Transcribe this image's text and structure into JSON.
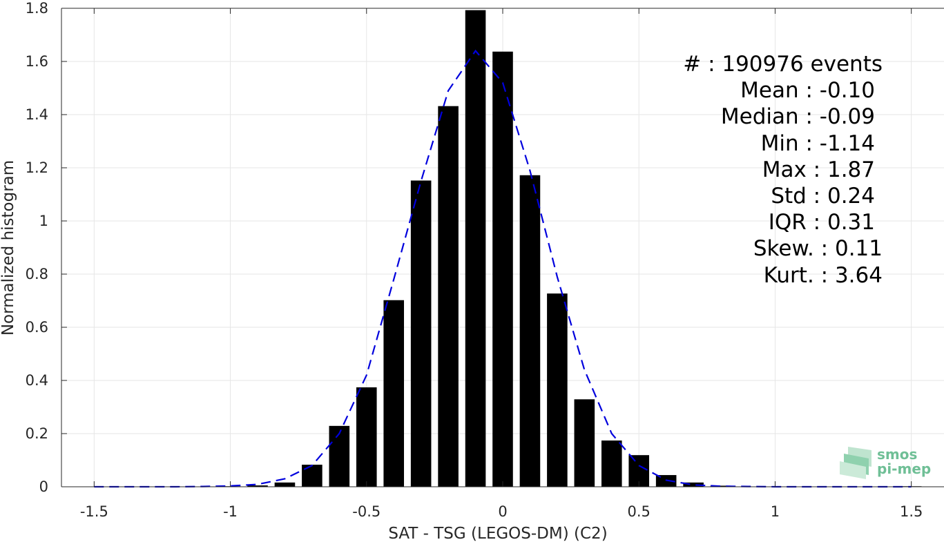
{
  "chart_data": {
    "type": "bar",
    "xlabel": "SAT - TSG (LEGOS-DM) (C2)",
    "ylabel": "Normalized histogram",
    "xlim": [
      -1.62,
      1.62
    ],
    "ylim": [
      0,
      1.8
    ],
    "xticks": [
      -1.5,
      -1,
      -0.5,
      0,
      0.5,
      1,
      1.5
    ],
    "xtick_labels": [
      "-1.5",
      "-1",
      "-0.5",
      "0",
      "0.5",
      "1",
      "1.5"
    ],
    "yticks": [
      0,
      0.2,
      0.4,
      0.6,
      0.8,
      1,
      1.2,
      1.4,
      1.6,
      1.8
    ],
    "ytick_labels": [
      "0",
      "0.2",
      "0.4",
      "0.6",
      "0.8",
      "1",
      "1.2",
      "1.4",
      "1.6",
      "1.8"
    ],
    "grid": true,
    "bar_color": "#000000",
    "bar_width": 0.075,
    "bars": {
      "x": [
        -1.5,
        -1.4,
        -1.3,
        -1.2,
        -1.1,
        -1.0,
        -0.9,
        -0.8,
        -0.7,
        -0.6,
        -0.5,
        -0.4,
        -0.3,
        -0.2,
        -0.1,
        0.0,
        0.1,
        0.2,
        0.3,
        0.4,
        0.5,
        0.6,
        0.7,
        0.8,
        0.9,
        1.0,
        1.1,
        1.2,
        1.3,
        1.4,
        1.5
      ],
      "values": [
        0,
        0,
        0,
        0,
        0,
        0.002,
        0.005,
        0.016,
        0.083,
        0.229,
        0.374,
        0.702,
        1.152,
        1.432,
        1.793,
        1.637,
        1.172,
        0.727,
        0.329,
        0.174,
        0.119,
        0.044,
        0.016,
        0.004,
        0.001,
        0.001,
        0,
        0,
        0,
        0,
        0.002
      ]
    },
    "fit": {
      "name": "fit",
      "style": "dashed",
      "color": "#0000dd",
      "x": [
        -1.5,
        -1.4,
        -1.3,
        -1.2,
        -1.1,
        -1.0,
        -0.9,
        -0.8,
        -0.7,
        -0.6,
        -0.5,
        -0.4,
        -0.3,
        -0.2,
        -0.1,
        0.0,
        0.1,
        0.2,
        0.3,
        0.4,
        0.5,
        0.6,
        0.7,
        0.8,
        0.9,
        1.0,
        1.1,
        1.2,
        1.3,
        1.4,
        1.5
      ],
      "values": [
        0,
        0,
        0,
        0,
        0.001,
        0.003,
        0.009,
        0.03,
        0.08,
        0.2,
        0.42,
        0.78,
        1.15,
        1.49,
        1.64,
        1.52,
        1.19,
        0.79,
        0.44,
        0.2,
        0.08,
        0.025,
        0.007,
        0.002,
        0.001,
        0,
        0,
        0,
        0,
        0,
        0
      ]
    }
  },
  "stats": [
    "#  : 190976 events",
    "Mean : -0.10",
    "Median : -0.09",
    "Min : -1.14",
    "Max : 1.87",
    "Std : 0.24",
    "IQR : 0.31",
    "Skew. : 0.11",
    "Kurt. : 3.64"
  ],
  "logo": {
    "line1": "smos",
    "line2": "pi-mep",
    "color": "#6fbf96"
  }
}
